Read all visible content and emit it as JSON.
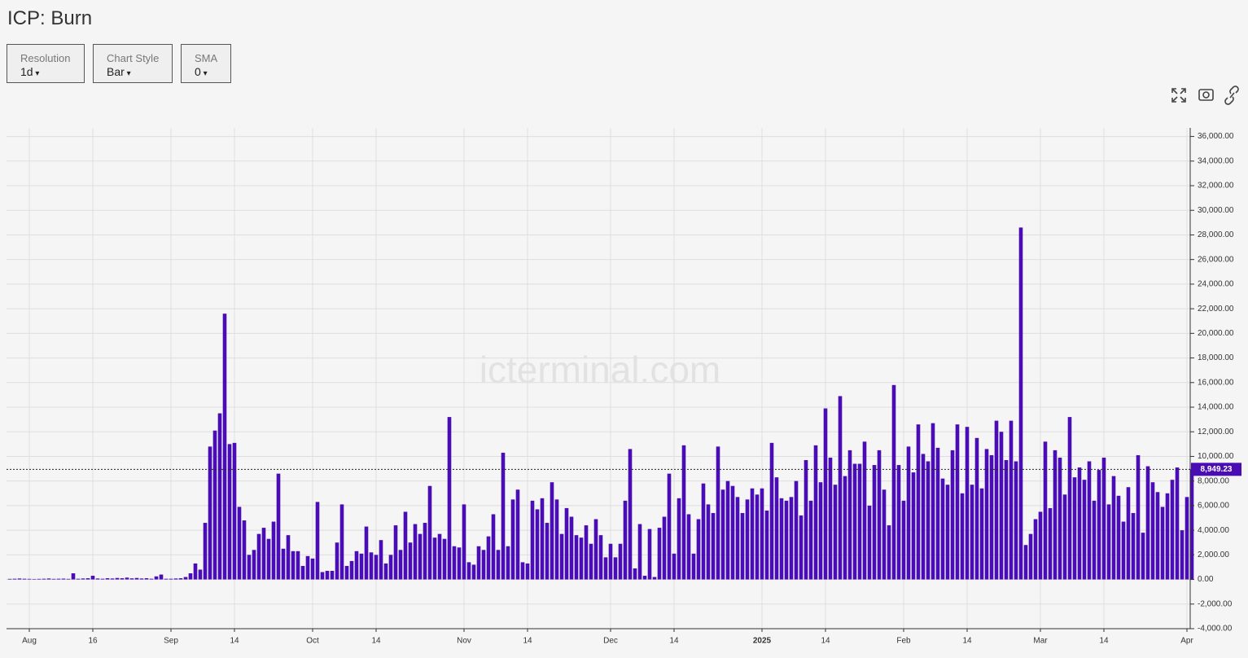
{
  "header": {
    "title": "ICP: Burn"
  },
  "controls": [
    {
      "label": "Resolution",
      "value": "1d"
    },
    {
      "label": "Chart Style",
      "value": "Bar"
    },
    {
      "label": "SMA",
      "value": "0"
    }
  ],
  "chart_data": {
    "type": "bar",
    "watermark": "icterminal.com",
    "color": "#4a0db3",
    "grid": true,
    "last_value_label": "8,949.23",
    "ylim": [
      -4000,
      36700
    ],
    "yticks": [
      {
        "value": -4000,
        "label": "-4,000.00"
      },
      {
        "value": -2000,
        "label": "-2,000.00"
      },
      {
        "value": 0,
        "label": "0.00"
      },
      {
        "value": 2000,
        "label": "2,000.00"
      },
      {
        "value": 4000,
        "label": "4,000.00"
      },
      {
        "value": 6000,
        "label": "6,000.00"
      },
      {
        "value": 8000,
        "label": "8,000.00"
      },
      {
        "value": 10000,
        "label": "10,000.00"
      },
      {
        "value": 12000,
        "label": "12,000.00"
      },
      {
        "value": 14000,
        "label": "14,000.00"
      },
      {
        "value": 16000,
        "label": "16,000.00"
      },
      {
        "value": 18000,
        "label": "18,000.00"
      },
      {
        "value": 20000,
        "label": "20,000.00"
      },
      {
        "value": 22000,
        "label": "22,000.00"
      },
      {
        "value": 24000,
        "label": "24,000.00"
      },
      {
        "value": 26000,
        "label": "26,000.00"
      },
      {
        "value": 28000,
        "label": "28,000.00"
      },
      {
        "value": 30000,
        "label": "30,000.00"
      },
      {
        "value": 32000,
        "label": "32,000.00"
      },
      {
        "value": 34000,
        "label": "34,000.00"
      },
      {
        "value": 36000,
        "label": "36,000.00"
      }
    ],
    "categories": [
      null,
      null,
      null,
      null,
      "Aug",
      null,
      null,
      null,
      null,
      null,
      null,
      null,
      null,
      null,
      null,
      null,
      null,
      "16",
      null,
      null,
      null,
      null,
      null,
      null,
      null,
      null,
      null,
      null,
      null,
      null,
      null,
      null,
      null,
      "Sep",
      null,
      null,
      null,
      null,
      null,
      null,
      null,
      null,
      null,
      null,
      null,
      null,
      "14",
      null,
      null,
      null,
      null,
      null,
      null,
      null,
      null,
      null,
      null,
      null,
      null,
      null,
      null,
      null,
      "Oct",
      null,
      null,
      null,
      null,
      null,
      null,
      null,
      null,
      null,
      null,
      null,
      null,
      "14",
      null,
      null,
      null,
      null,
      null,
      null,
      null,
      null,
      null,
      null,
      null,
      null,
      null,
      null,
      null,
      null,
      null,
      "Nov",
      null,
      null,
      null,
      null,
      null,
      null,
      null,
      null,
      null,
      null,
      null,
      null,
      "14",
      null,
      null,
      null,
      null,
      null,
      null,
      null,
      null,
      null,
      null,
      null,
      null,
      null,
      null,
      null,
      null,
      "Dec",
      null,
      null,
      null,
      null,
      null,
      null,
      null,
      null,
      null,
      null,
      null,
      null,
      "14",
      null,
      null,
      null,
      null,
      null,
      null,
      null,
      null,
      null,
      null,
      null,
      null,
      null,
      null,
      null,
      null,
      null,
      "2025",
      null,
      null,
      null,
      null,
      null,
      null,
      null,
      null,
      null,
      null,
      null,
      null,
      "14",
      null,
      null,
      null,
      null,
      null,
      null,
      null,
      null,
      null,
      null,
      null,
      null,
      null,
      null,
      null,
      "Feb",
      null,
      null,
      null,
      null,
      null,
      null,
      null,
      null,
      null,
      null,
      null,
      null,
      "14",
      null,
      null,
      null,
      null,
      null,
      null,
      null,
      null,
      null,
      null,
      null,
      null,
      null,
      null,
      "Mar",
      null,
      null,
      null,
      null,
      null,
      null,
      null,
      null,
      null,
      null,
      null,
      null,
      "14",
      null,
      null,
      null,
      null,
      null,
      null,
      null,
      null,
      null,
      null,
      null,
      null,
      null,
      null,
      null,
      null,
      "Apr",
      null
    ],
    "values": [
      50,
      60,
      80,
      60,
      50,
      40,
      50,
      60,
      80,
      50,
      60,
      70,
      50,
      500,
      60,
      80,
      100,
      300,
      80,
      60,
      100,
      80,
      120,
      100,
      150,
      90,
      120,
      80,
      100,
      60,
      250,
      400,
      60,
      60,
      80,
      100,
      200,
      500,
      1300,
      800,
      4600,
      10800,
      12100,
      13500,
      21600,
      11000,
      11100,
      5900,
      4800,
      2000,
      2400,
      3700,
      4200,
      3300,
      4700,
      8600,
      2500,
      3600,
      2300,
      2300,
      1100,
      1900,
      1700,
      6300,
      600,
      700,
      700,
      3000,
      6100,
      1100,
      1500,
      2300,
      2100,
      4300,
      2200,
      2000,
      3200,
      1300,
      2000,
      4400,
      2400,
      5500,
      3000,
      4500,
      3700,
      4600,
      7600,
      3400,
      3700,
      3300,
      13200,
      2700,
      2600,
      6100,
      1400,
      1200,
      2700,
      2400,
      3500,
      5300,
      2400,
      10300,
      2700,
      6500,
      7300,
      1400,
      1300,
      6400,
      5700,
      6600,
      4600,
      7900,
      6500,
      3700,
      5800,
      5100,
      3600,
      3400,
      4400,
      2900,
      4900,
      3600,
      1800,
      2900,
      1800,
      2900,
      6400,
      10600,
      900,
      4500,
      300,
      4100,
      200,
      4200,
      5100,
      8600,
      2100,
      6600,
      10900,
      5300,
      2100,
      4900,
      7800,
      6100,
      5400,
      10800,
      7300,
      8000,
      7600,
      6700,
      5400,
      6500,
      7400,
      6900,
      7400,
      5600,
      11100,
      8300,
      6600,
      6400,
      6700,
      8000,
      5200,
      9700,
      6400,
      10900,
      7900,
      13900,
      9900,
      7700,
      14900,
      8400,
      10500,
      9400,
      9400,
      11200,
      6000,
      9300,
      10500,
      7300,
      4400,
      15800,
      9300,
      6400,
      10800,
      8700,
      12600,
      10200,
      9600,
      12700,
      10700,
      8200,
      7700,
      10500,
      12600,
      7000,
      12400,
      7700,
      11500,
      7400,
      10600,
      10100,
      12900,
      12000,
      9700,
      12900,
      9600,
      28600,
      2800,
      3700,
      4900,
      5500,
      11200,
      5800,
      10500,
      9900,
      6900,
      13200,
      8300,
      9100,
      8100,
      9600,
      6400,
      8900,
      9900,
      6100,
      8400,
      6800,
      4700,
      7500,
      5400,
      10100,
      3800,
      9200,
      7900,
      7100,
      5900,
      7000,
      8100,
      9100,
      4000,
      6700,
      8949.23
    ]
  }
}
